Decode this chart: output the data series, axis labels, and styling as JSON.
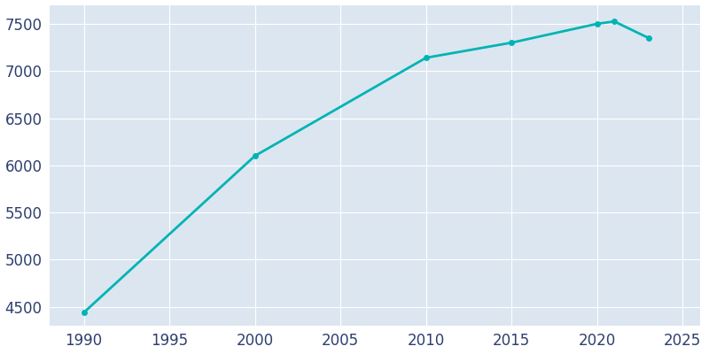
{
  "years": [
    1990,
    2000,
    2010,
    2015,
    2020,
    2021,
    2023
  ],
  "population": [
    4440,
    6100,
    7140,
    7300,
    7500,
    7525,
    7350
  ],
  "line_color": "#00B4B4",
  "marker": "o",
  "marker_size": 4,
  "plot_bg_color": "#DCE6F0",
  "figure_bg_color": "#FFFFFF",
  "grid_color": "#FFFFFF",
  "tick_color": "#2E3F6F",
  "xlim": [
    1988,
    2026
  ],
  "ylim": [
    4300,
    7700
  ],
  "xticks": [
    1990,
    1995,
    2000,
    2005,
    2010,
    2015,
    2020,
    2025
  ],
  "yticks": [
    4500,
    5000,
    5500,
    6000,
    6500,
    7000,
    7500
  ],
  "line_width": 2.0,
  "tick_fontsize": 12
}
